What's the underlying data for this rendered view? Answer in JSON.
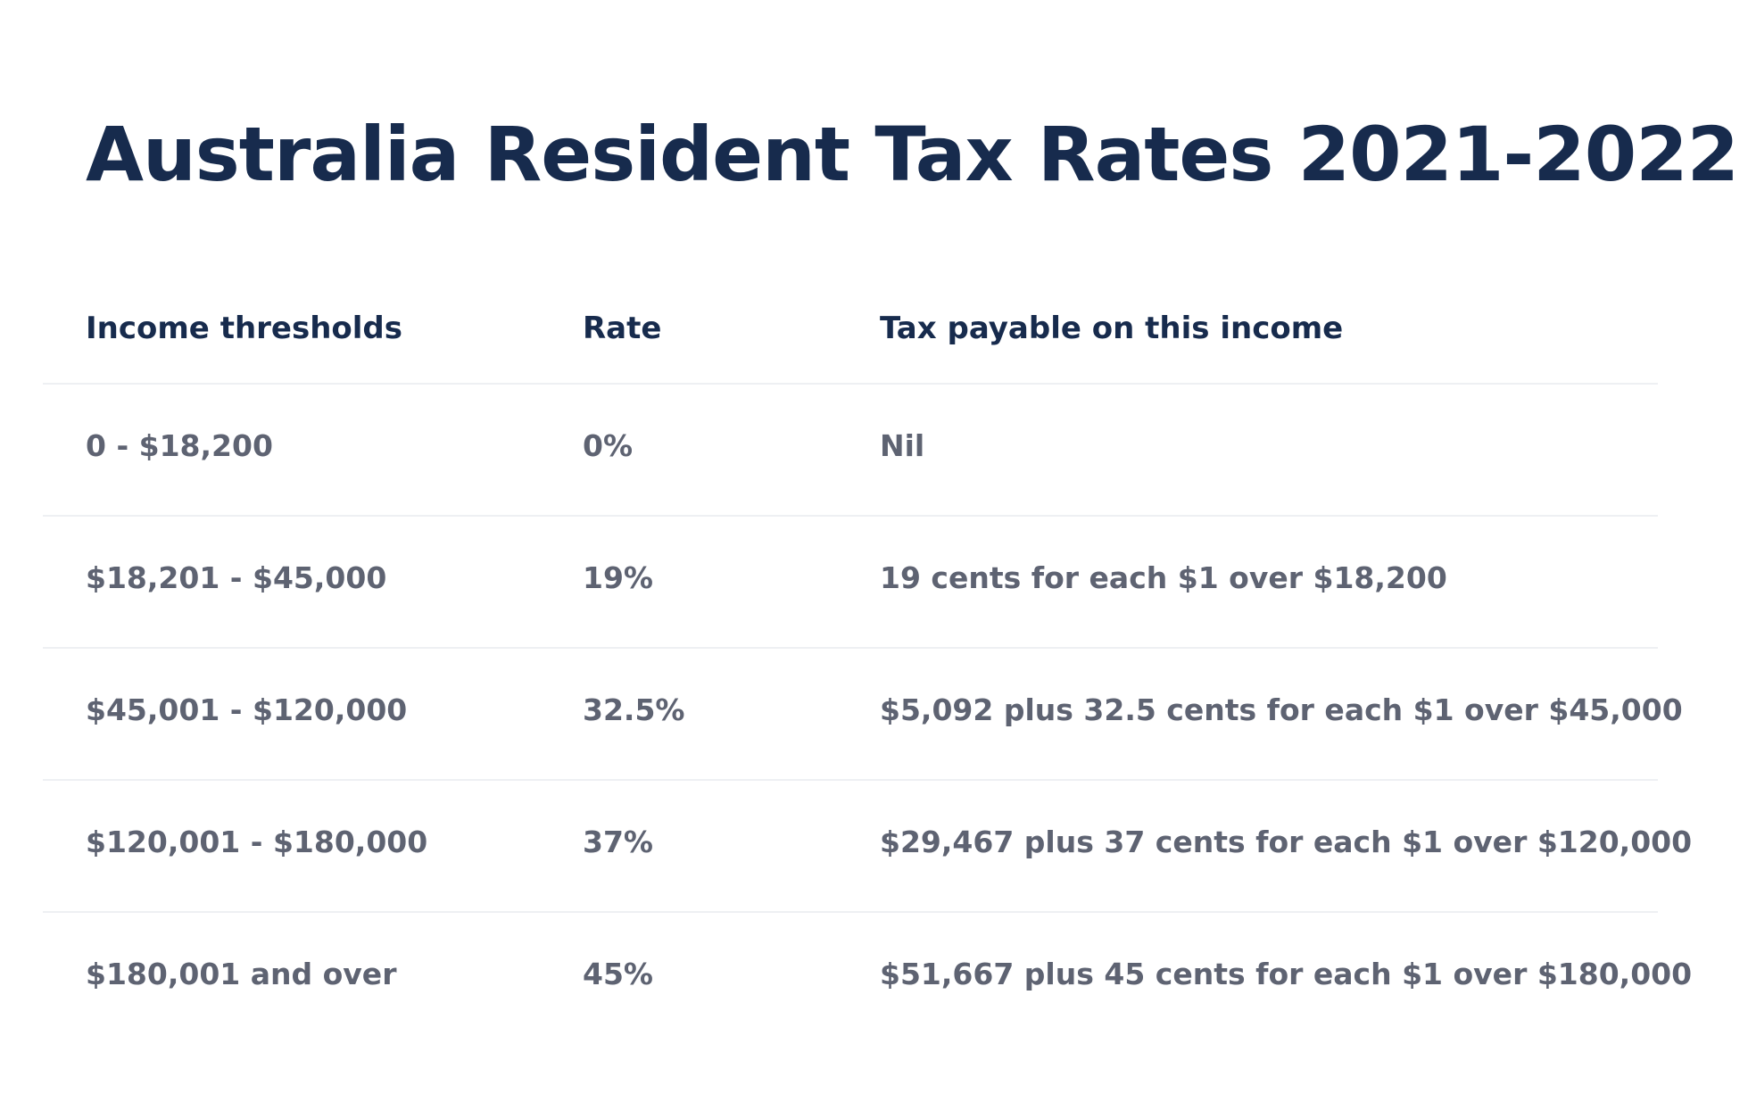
{
  "title": "Australia Resident Tax Rates 2021-2022",
  "table": {
    "headers": [
      "Income thresholds",
      "Rate",
      "Tax payable on this income"
    ],
    "rows": [
      [
        "0 - $18,200",
        "0%",
        "Nil"
      ],
      [
        "$18,201 - $45,000",
        "19%",
        "19 cents for each $1 over $18,200"
      ],
      [
        "$45,001 - $120,000",
        "32.5%",
        "$5,092 plus 32.5 cents for each $1 over $45,000"
      ],
      [
        "$120,001 - $180,000",
        "37%",
        "$29,467 plus 37 cents for each $1 over $120,000"
      ],
      [
        "$180,001 and over",
        "45%",
        "$51,667 plus 45 cents for each $1 over $180,000"
      ]
    ]
  },
  "colors": {
    "heading": "#172b4d",
    "body_text": "#5e6372",
    "divider": "#eef0f3",
    "background": "#ffffff"
  }
}
